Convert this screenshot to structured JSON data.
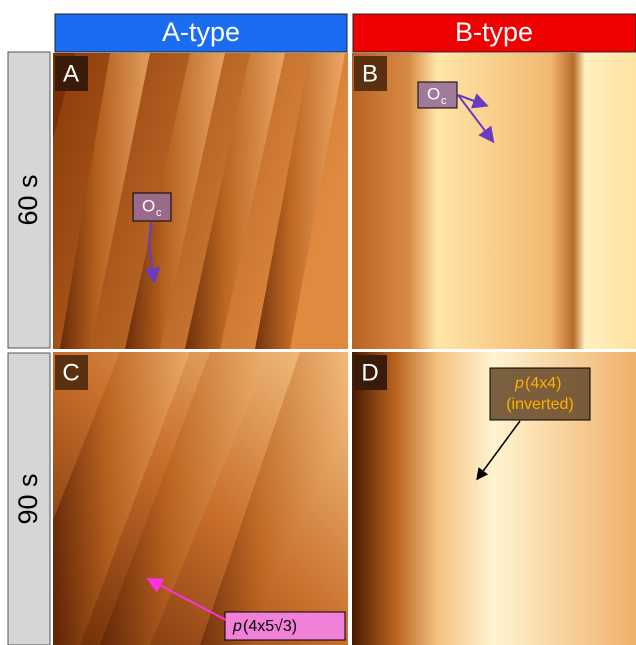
{
  "columns": [
    {
      "label": "A-type"
    },
    {
      "label": "B-type"
    }
  ],
  "rows": [
    {
      "label": "60 s"
    },
    {
      "label": "90 s"
    }
  ],
  "panels": [
    {
      "letter": "A",
      "annotation": {
        "text": "O",
        "subscript": "c"
      }
    },
    {
      "letter": "B",
      "annotation": {
        "text": "O",
        "subscript": "c"
      }
    },
    {
      "letter": "C",
      "annotation": {
        "italic": "p",
        "text": "(4x5√3)"
      }
    },
    {
      "letter": "D",
      "annotation": {
        "italic": "p",
        "text": "(4x4)",
        "line2": "(inverted)"
      }
    }
  ]
}
